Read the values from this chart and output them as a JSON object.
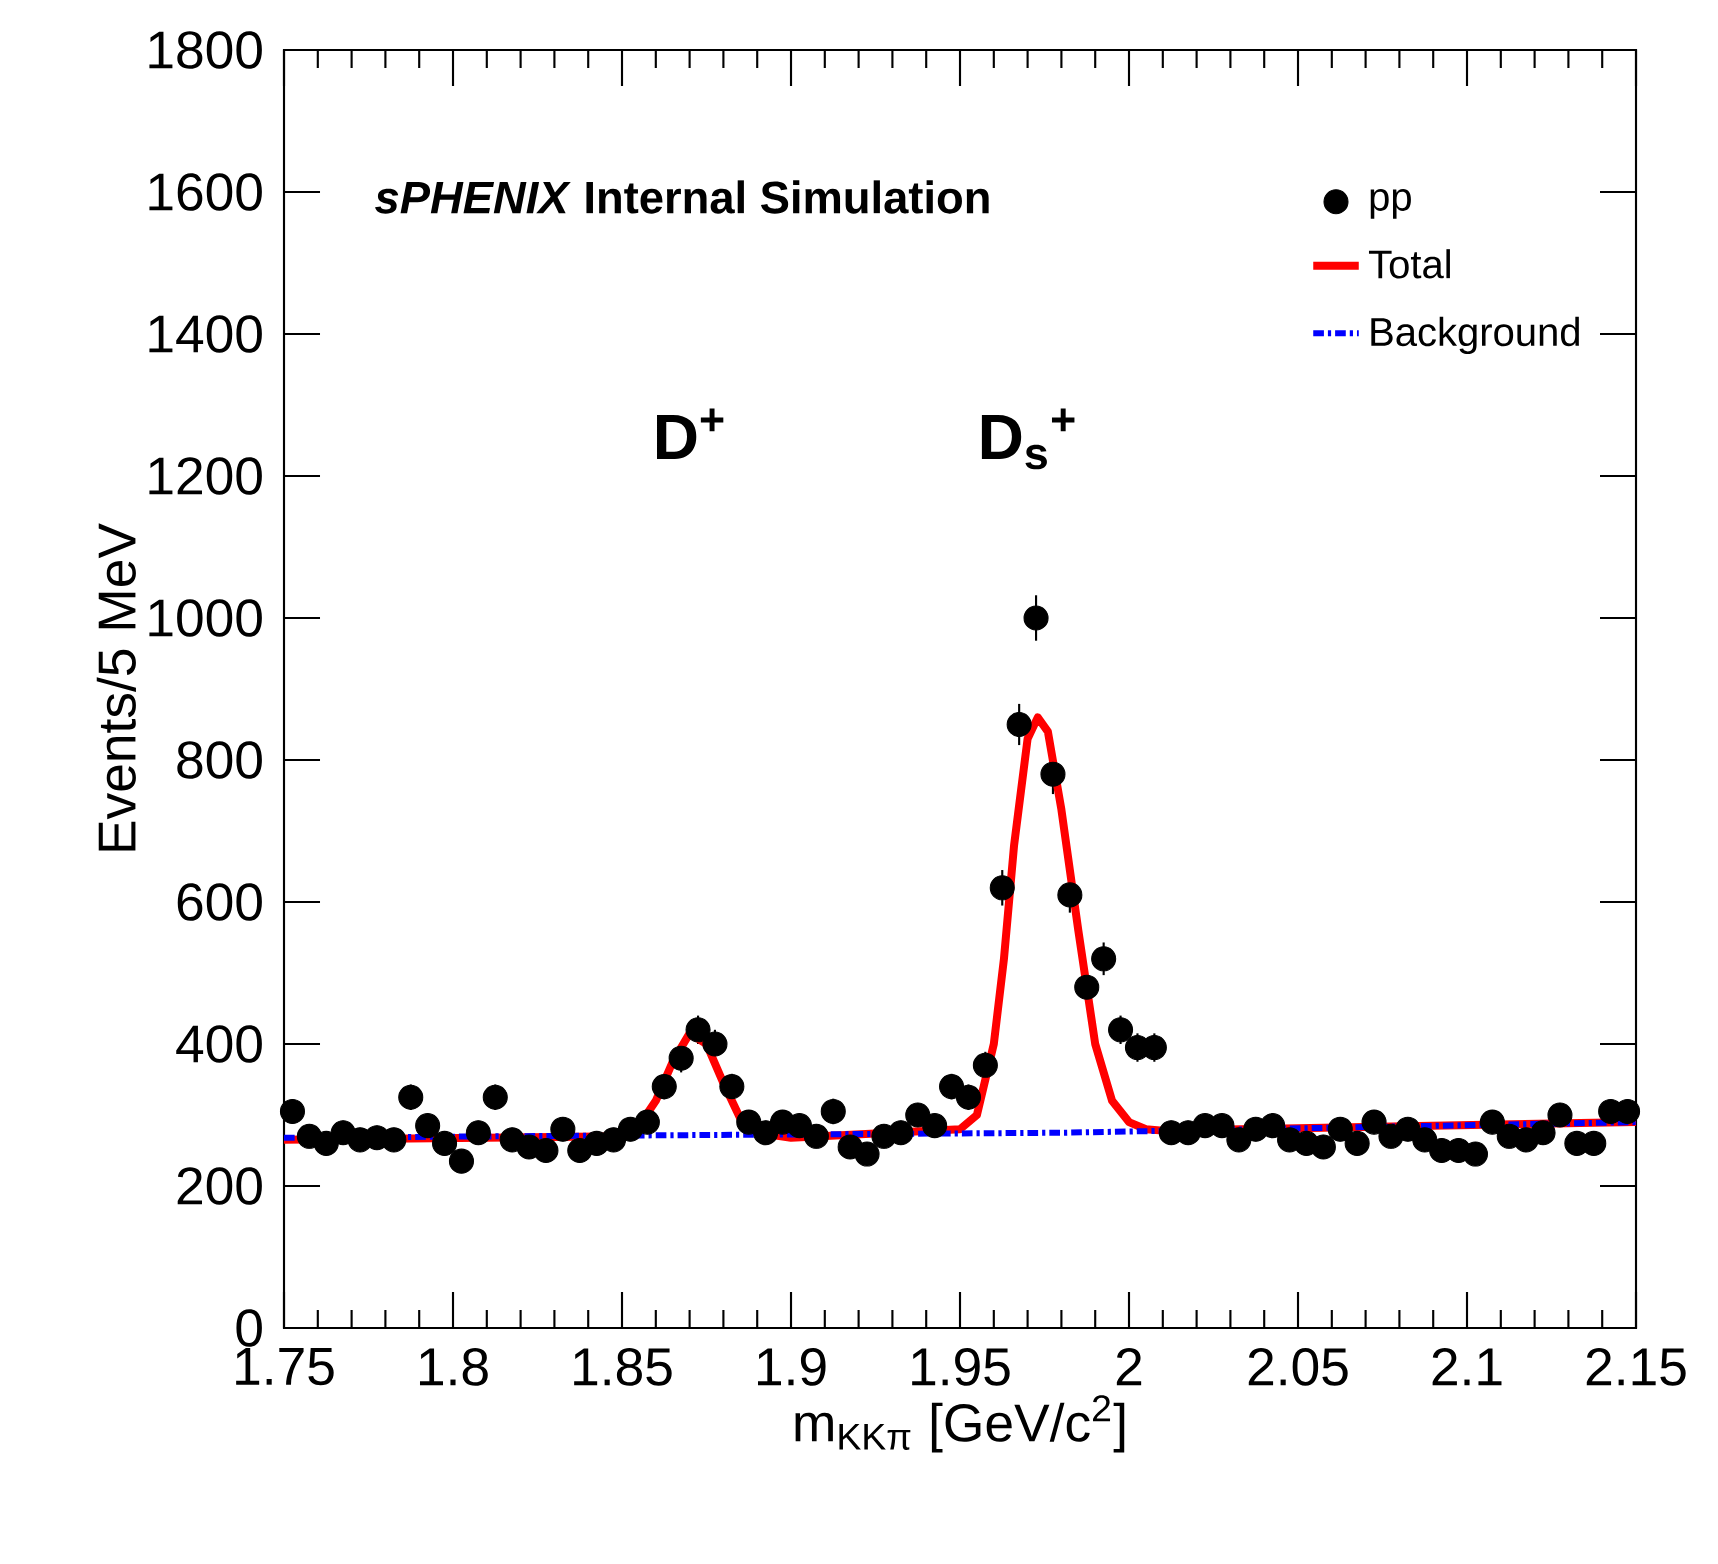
{
  "chart_data": {
    "type": "scatter",
    "title": "*sPHENIX* Internal Simulation",
    "xlabel": "m$_{KKπ}$ [GeV/c$^{2}$]",
    "ylabel": "Events/5 MeV",
    "annotations": [
      "D$^{+}$",
      "D$_{s}$$^{+}$"
    ],
    "xlim": [
      1.75,
      2.15
    ],
    "ylim": [
      0,
      1800
    ],
    "xticks": [
      1.75,
      1.8,
      1.85,
      1.9,
      1.95,
      2,
      2.05,
      2.1,
      2.15
    ],
    "yticks": [
      0,
      200,
      400,
      600,
      800,
      1000,
      1200,
      1400,
      1600,
      1800
    ],
    "grid": false,
    "legend": "top right",
    "series": [
      {
        "name": "pp",
        "color": "#000000",
        "marker": "circle",
        "x": [
          1.7525,
          1.7575,
          1.7625,
          1.7675,
          1.7725,
          1.7775,
          1.7825,
          1.7875,
          1.7925,
          1.7975,
          1.8025,
          1.8075,
          1.8125,
          1.8175,
          1.8225,
          1.8275,
          1.8325,
          1.8375,
          1.8425,
          1.8475,
          1.8525,
          1.8575,
          1.8625,
          1.8675,
          1.8725,
          1.8775,
          1.8825,
          1.8875,
          1.8925,
          1.8975,
          1.9025,
          1.9075,
          1.9125,
          1.9175,
          1.9225,
          1.9275,
          1.9325,
          1.9375,
          1.9425,
          1.9475,
          1.9525,
          1.9575,
          1.9625,
          1.9675,
          1.9725,
          1.9775,
          1.9825,
          1.9875,
          1.9925,
          1.9975,
          2.0025,
          2.0075,
          2.0125,
          2.0175,
          2.0225,
          2.0275,
          2.0325,
          2.0375,
          2.0425,
          2.0475,
          2.0525,
          2.0575,
          2.0625,
          2.0675,
          2.0725,
          2.0775,
          2.0825,
          2.0875,
          2.0925,
          2.0975,
          2.1025,
          2.1075,
          2.1125,
          2.1175,
          2.1225,
          2.1275,
          2.1325,
          2.1375,
          2.1425,
          2.1475
        ],
        "values": [
          305,
          270,
          260,
          275,
          265,
          268,
          265,
          325,
          285,
          260,
          235,
          275,
          325,
          265,
          255,
          250,
          280,
          250,
          260,
          265,
          280,
          290,
          340,
          380,
          420,
          400,
          340,
          290,
          275,
          290,
          285,
          270,
          305,
          255,
          245,
          270,
          275,
          300,
          285,
          340,
          325,
          370,
          620,
          850,
          1000,
          780,
          610,
          480,
          520,
          420,
          395,
          395,
          275,
          275,
          285,
          285,
          265,
          280,
          285,
          265,
          260,
          255,
          280,
          260,
          290,
          270,
          280,
          265,
          250,
          250,
          245,
          290,
          270,
          265,
          275,
          300,
          260,
          260,
          305,
          305
        ],
        "errors": [
          17,
          17,
          17,
          17,
          17,
          17,
          17,
          18,
          17,
          17,
          16,
          17,
          18,
          17,
          17,
          17,
          17,
          17,
          17,
          17,
          17,
          17,
          18,
          20,
          20,
          20,
          18,
          17,
          17,
          17,
          17,
          17,
          18,
          17,
          16,
          17,
          17,
          17,
          17,
          18,
          18,
          19,
          25,
          29,
          32,
          28,
          25,
          22,
          23,
          20,
          20,
          20,
          17,
          17,
          17,
          17,
          17,
          17,
          17,
          17,
          17,
          17,
          17,
          17,
          17,
          17,
          17,
          17,
          17,
          17,
          17,
          17,
          17,
          17,
          17,
          17,
          17,
          17,
          17,
          17
        ]
      },
      {
        "name": "Total",
        "type": "line",
        "color": "#ff0000",
        "line_style": "solid",
        "x": [
          1.75,
          1.85,
          1.855,
          1.86,
          1.865,
          1.87,
          1.875,
          1.88,
          1.885,
          1.89,
          1.9,
          1.95,
          1.955,
          1.96,
          1.963,
          1.966,
          1.97,
          1.973,
          1.976,
          1.98,
          1.985,
          1.99,
          1.995,
          2.0,
          2.005,
          2.01,
          2.15
        ],
        "values": [
          265,
          270,
          285,
          320,
          375,
          415,
          400,
          345,
          295,
          275,
          268,
          280,
          300,
          400,
          520,
          680,
          830,
          860,
          840,
          730,
          560,
          400,
          320,
          290,
          280,
          278,
          290
        ]
      },
      {
        "name": "Background",
        "type": "line",
        "color": "#0000ff",
        "line_style": "dotted",
        "x": [
          1.75,
          1.98,
          2.15
        ],
        "values": [
          268,
          275,
          290
        ]
      }
    ]
  }
}
